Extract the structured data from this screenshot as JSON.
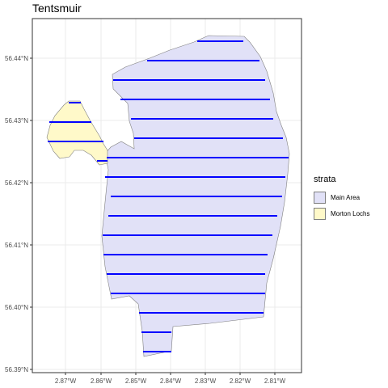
{
  "title": "Tentsmuir",
  "legend": {
    "title": "strata",
    "items": [
      {
        "label": "Main Area",
        "color": "#e1e1f7"
      },
      {
        "label": "Morton Lochs",
        "color": "#fff9c9"
      }
    ]
  },
  "axes": {
    "x_ticks": [
      "2.87°W",
      "2.86°W",
      "2.85°W",
      "2.84°W",
      "2.83°W",
      "2.82°W",
      "2.81°W"
    ],
    "y_ticks": [
      "56.44°N",
      "56.43°N",
      "56.42°N",
      "56.41°N",
      "56.40°N",
      "56.39°N"
    ]
  },
  "colors": {
    "transect": "#0000ff",
    "panel_border": "#333333",
    "grid": "#ebebeb"
  }
}
